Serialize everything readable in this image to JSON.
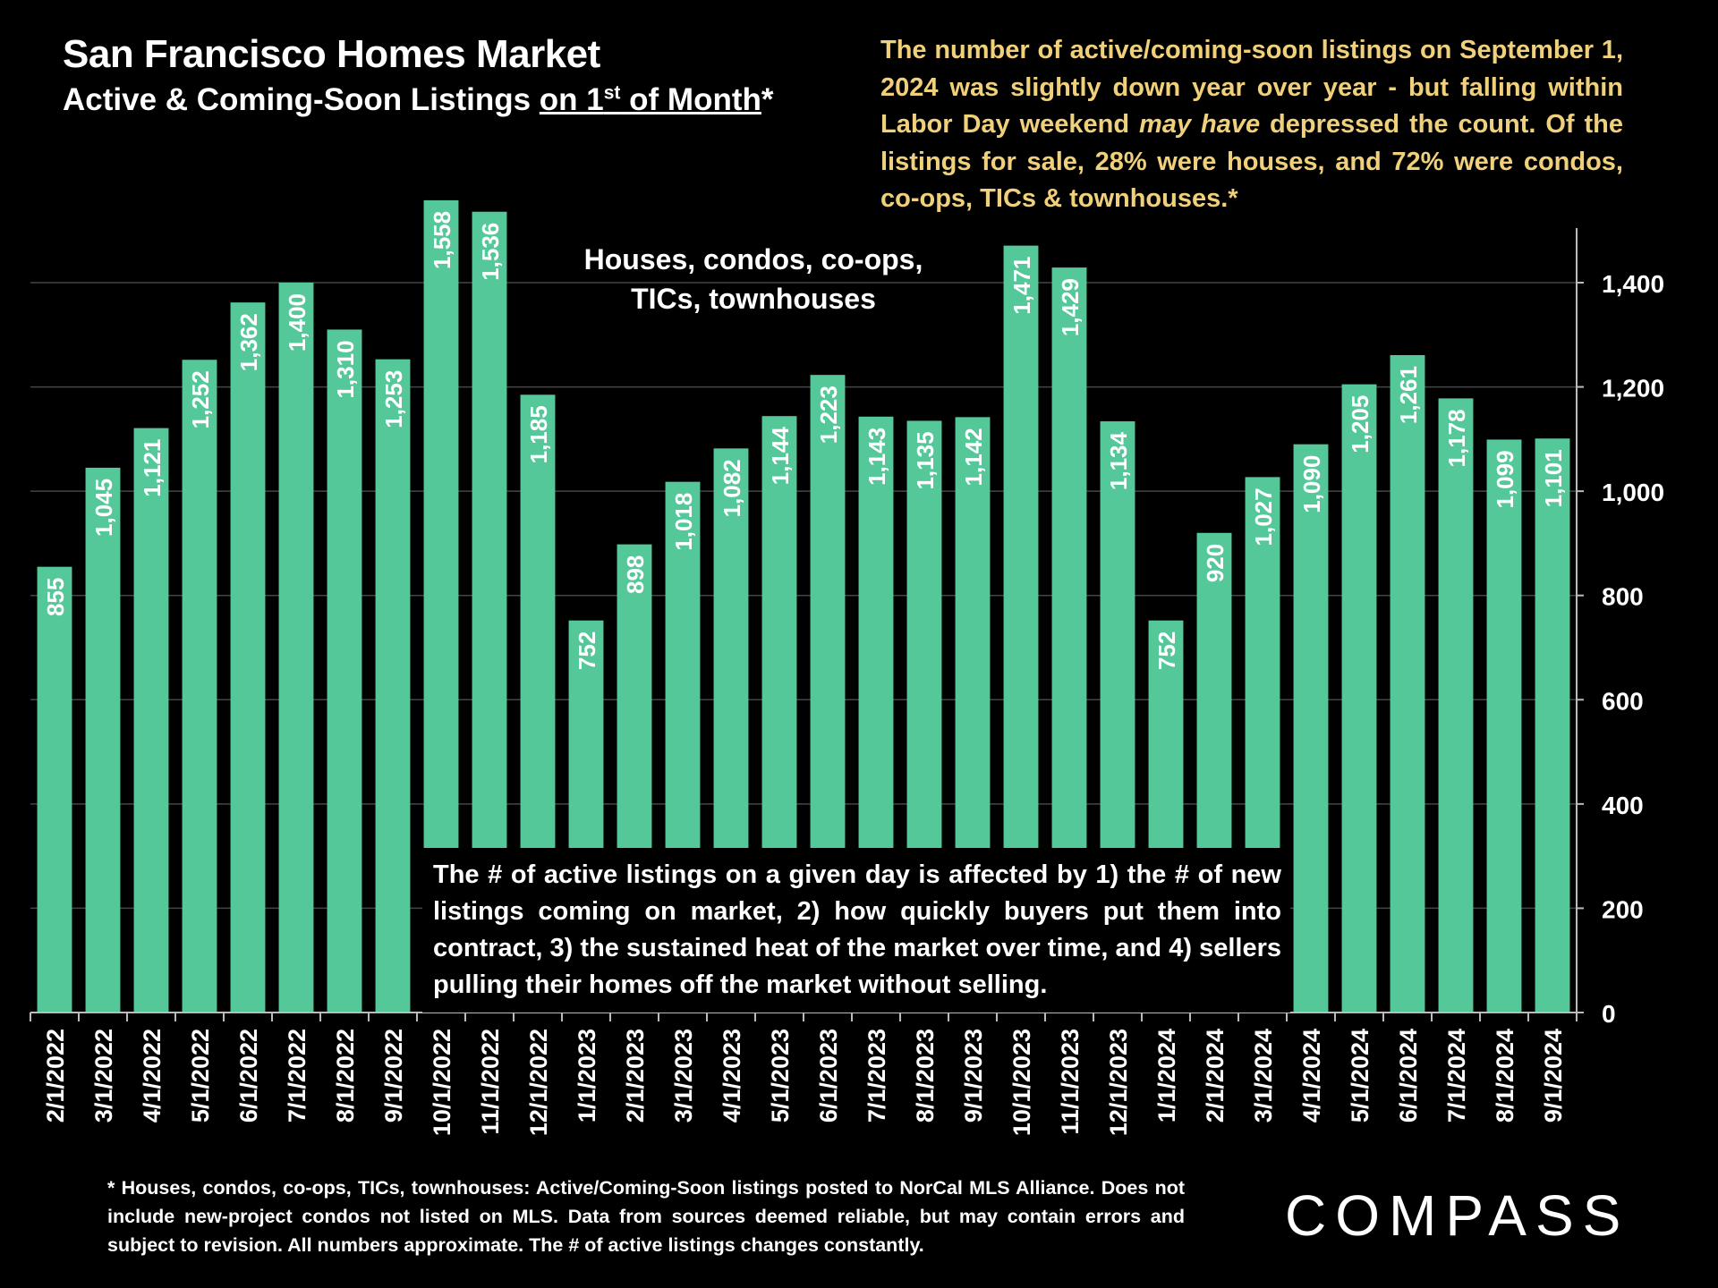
{
  "title": "San Francisco Homes Market",
  "subtitle": {
    "prefix": "Active & Coming-Soon Listings ",
    "underlined_pre": "on 1",
    "sup": "st",
    "underlined_post": " of Month",
    "suffix": "*"
  },
  "note": {
    "part1": "The number of active/coming-soon listings on September 1, 2024 was slightly down year over year - but falling within Labor Day weekend ",
    "emphasis": "may have",
    "part2": " depressed the count. Of the listings for sale, 28% were houses, and 72% were condos, co-ops, TICs & townhouses.*"
  },
  "series_label": "Houses, condos, co-ops, TICs, townhouses",
  "box_text": "The # of active listings on a given day is affected by 1) the # of new listings coming on market, 2) how quickly buyers put them into contract, 3) the sustained heat of the market over time, and 4) sellers pulling their homes off the market without selling.",
  "footnote": "* Houses, condos, co-ops, TICs, townhouses: Active/Coming-Soon listings posted to NorCal MLS Alliance. Does not include new-project condos not listed on MLS. Data from sources deemed reliable, but may contain errors and subject to revision. All numbers approximate. The # of active listings changes constantly.",
  "logo": "COMPASS",
  "colors": {
    "bar": "#55c89a",
    "note": "#f0d07a",
    "background": "#000000",
    "grid": "#444444",
    "text": "#ffffff"
  },
  "chart_data": {
    "type": "bar",
    "title": "San Francisco Homes Market",
    "xlabel": "",
    "ylabel": "",
    "ylim": [
      0,
      1500
    ],
    "yticks": [
      0,
      200,
      400,
      600,
      800,
      1000,
      1200,
      1400
    ],
    "ytick_labels": [
      "0",
      "200",
      "400",
      "600",
      "800",
      "1,000",
      "1,200",
      "1,400"
    ],
    "grid": true,
    "categories": [
      "2/1/2022",
      "3/1/2022",
      "4/1/2022",
      "5/1/2022",
      "6/1/2022",
      "7/1/2022",
      "8/1/2022",
      "9/1/2022",
      "10/1/2022",
      "11/1/2022",
      "12/1/2022",
      "1/1/2023",
      "2/1/2023",
      "3/1/2023",
      "4/1/2023",
      "5/1/2023",
      "6/1/2023",
      "7/1/2023",
      "8/1/2023",
      "9/1/2023",
      "10/1/2023",
      "11/1/2023",
      "12/1/2023",
      "1/1/2024",
      "2/1/2024",
      "3/1/2024",
      "4/1/2024",
      "5/1/2024",
      "6/1/2024",
      "7/1/2024",
      "8/1/2024",
      "9/1/2024"
    ],
    "values": [
      855,
      1045,
      1121,
      1252,
      1362,
      1400,
      1310,
      1253,
      1558,
      1536,
      1185,
      752,
      898,
      1018,
      1082,
      1144,
      1223,
      1143,
      1135,
      1142,
      1471,
      1429,
      1134,
      752,
      920,
      1027,
      1090,
      1205,
      1261,
      1178,
      1099,
      1101
    ],
    "labels": [
      "855",
      "1,045",
      "1,121",
      "1,252",
      "1,362",
      "1,400",
      "1,310",
      "1,253",
      "1,558",
      "1,536",
      "1,185",
      "752",
      "898",
      "1,018",
      "1,082",
      "1,144",
      "1,223",
      "1,143",
      "1,135",
      "1,142",
      "1,471",
      "1,429",
      "1,134",
      "752",
      "920",
      "1,027",
      "1,090",
      "1,205",
      "1,261",
      "1,178",
      "1,099",
      "1,101"
    ]
  }
}
